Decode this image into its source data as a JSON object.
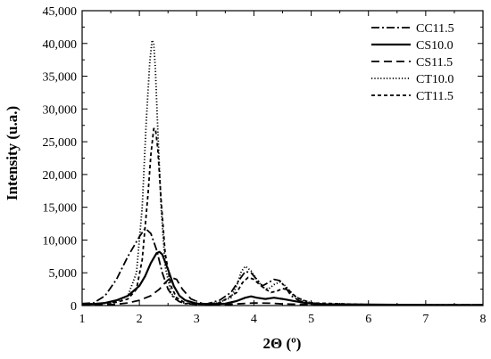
{
  "chart_data": {
    "type": "line",
    "xlabel": "2Θ (º)",
    "ylabel": "Intensity (u.a.)",
    "xlim": [
      1,
      8
    ],
    "ylim": [
      0,
      45000
    ],
    "x_ticks": [
      "1",
      "2",
      "3",
      "4",
      "5",
      "6",
      "7",
      "8"
    ],
    "y_ticks": [
      "0",
      "5,000",
      "10,000",
      "15,000",
      "20,000",
      "25,000",
      "30,000",
      "35,000",
      "40,000",
      "45,000"
    ],
    "legend_position": "top-right",
    "grid": false,
    "series": [
      {
        "name": "CC11.5",
        "dash": "dashdot",
        "x": [
          1.0,
          1.2,
          1.4,
          1.6,
          1.8,
          2.0,
          2.1,
          2.2,
          2.3,
          2.4,
          2.5,
          2.6,
          2.7,
          2.8,
          3.0,
          3.2,
          3.4,
          3.6,
          3.75,
          3.85,
          3.95,
          4.05,
          4.15,
          4.25,
          4.35,
          4.45,
          4.55,
          4.65,
          4.8,
          5.0,
          5.5,
          6.0,
          6.5,
          7.0,
          8.0
        ],
        "values": [
          300,
          400,
          1500,
          4000,
          7500,
          10500,
          11800,
          11000,
          8500,
          5000,
          2500,
          1200,
          600,
          300,
          200,
          300,
          800,
          2000,
          4000,
          5200,
          5000,
          4000,
          3000,
          3500,
          4000,
          3800,
          2800,
          1500,
          700,
          300,
          150,
          150,
          100,
          100,
          100
        ]
      },
      {
        "name": "CS10.0",
        "dash": "solid",
        "x": [
          1.0,
          1.2,
          1.4,
          1.6,
          1.8,
          2.0,
          2.1,
          2.2,
          2.3,
          2.35,
          2.4,
          2.5,
          2.6,
          2.7,
          2.8,
          3.0,
          3.2,
          3.5,
          3.7,
          3.85,
          3.95,
          4.05,
          4.2,
          4.35,
          4.5,
          4.7,
          4.9,
          5.2,
          6.0,
          7.0,
          8.0
        ],
        "values": [
          200,
          250,
          400,
          800,
          1500,
          3000,
          4500,
          6500,
          8000,
          8200,
          7800,
          5500,
          3000,
          1500,
          800,
          300,
          200,
          300,
          700,
          1200,
          1400,
          1200,
          1000,
          1200,
          1000,
          700,
          400,
          200,
          150,
          100,
          100
        ]
      },
      {
        "name": "CS11.5",
        "dash": "dash",
        "x": [
          1.0,
          1.3,
          1.6,
          1.8,
          2.0,
          2.2,
          2.35,
          2.45,
          2.55,
          2.65,
          2.75,
          2.9,
          3.1,
          3.5,
          3.8,
          4.0,
          4.3,
          4.5,
          5.0,
          6.0,
          7.0,
          8.0
        ],
        "values": [
          100,
          100,
          200,
          400,
          800,
          1500,
          2500,
          3500,
          4300,
          4000,
          2500,
          1000,
          300,
          150,
          300,
          400,
          350,
          250,
          150,
          100,
          100,
          100
        ]
      },
      {
        "name": "CT10.0",
        "dash": "dot",
        "x": [
          1.0,
          1.3,
          1.6,
          1.8,
          1.95,
          2.05,
          2.12,
          2.18,
          2.22,
          2.25,
          2.28,
          2.32,
          2.38,
          2.45,
          2.55,
          2.65,
          2.8,
          3.0,
          3.3,
          3.6,
          3.7,
          3.78,
          3.85,
          3.95,
          4.05,
          4.15,
          4.25,
          4.35,
          4.45,
          4.55,
          4.7,
          4.9,
          5.2,
          6.0,
          7.0,
          8.0
        ],
        "values": [
          200,
          300,
          600,
          1500,
          5000,
          15000,
          28000,
          37000,
          40500,
          40000,
          36000,
          27000,
          15000,
          6000,
          2000,
          800,
          300,
          200,
          200,
          1200,
          3000,
          5200,
          6000,
          5300,
          4000,
          2800,
          2500,
          3200,
          3600,
          3000,
          1500,
          600,
          200,
          150,
          100,
          100
        ]
      },
      {
        "name": "CT11.5",
        "dash": "shortdash",
        "x": [
          1.0,
          1.3,
          1.6,
          1.8,
          1.95,
          2.05,
          2.15,
          2.2,
          2.25,
          2.28,
          2.32,
          2.38,
          2.45,
          2.55,
          2.65,
          2.8,
          3.0,
          3.4,
          3.7,
          3.8,
          3.9,
          4.0,
          4.1,
          4.2,
          4.3,
          4.4,
          4.5,
          4.6,
          4.75,
          5.0,
          6.0,
          7.0,
          8.0
        ],
        "values": [
          200,
          300,
          500,
          1000,
          2500,
          7000,
          17000,
          23000,
          27000,
          27000,
          24000,
          16000,
          8000,
          3000,
          1200,
          400,
          200,
          400,
          2000,
          3500,
          4300,
          4000,
          3200,
          2500,
          2000,
          2200,
          2600,
          2400,
          1200,
          400,
          150,
          100,
          100
        ]
      }
    ]
  }
}
